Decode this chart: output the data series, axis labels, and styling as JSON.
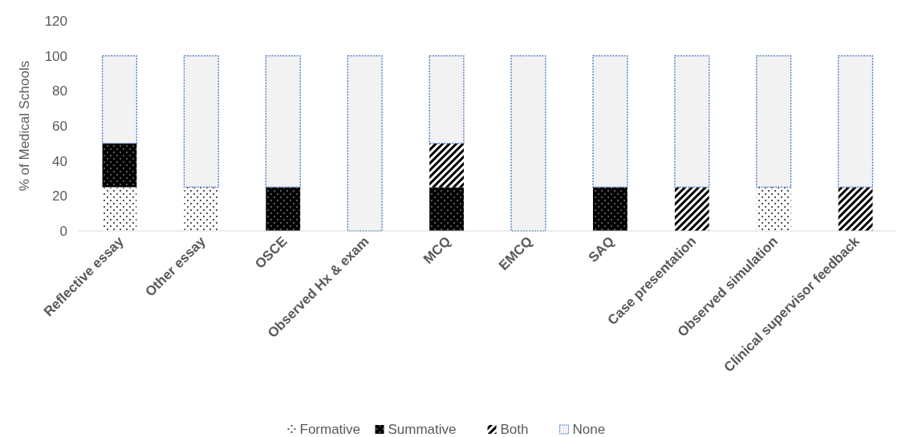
{
  "chart_data": {
    "type": "bar",
    "stacked": true,
    "ylabel": "% of Medical Schools",
    "categories": [
      "Reflective essay",
      "Other essay",
      "OSCE",
      "Observed Hx & exam",
      "MCQ",
      "EMCQ",
      "SAQ",
      "Case presentation",
      "Observed simulation",
      "Clinical supervisor feedback"
    ],
    "series": [
      {
        "name": "Formative",
        "color": "#000000",
        "values": [
          25,
          25,
          0,
          0,
          0,
          0,
          0,
          0,
          25,
          0
        ]
      },
      {
        "name": "Summative",
        "color": "#000000",
        "values": [
          25,
          0,
          25,
          0,
          25,
          0,
          25,
          0,
          0,
          0
        ]
      },
      {
        "name": "Both",
        "color": "#000000",
        "values": [
          0,
          0,
          0,
          0,
          25,
          0,
          0,
          25,
          0,
          25
        ]
      },
      {
        "name": "None",
        "color": "#f2f2f2",
        "values": [
          50,
          75,
          75,
          100,
          50,
          100,
          75,
          75,
          75,
          75
        ]
      }
    ],
    "ylim": [
      0,
      120
    ],
    "yticks": [
      0,
      20,
      40,
      60,
      80,
      100,
      120
    ],
    "legend": "bottom"
  }
}
